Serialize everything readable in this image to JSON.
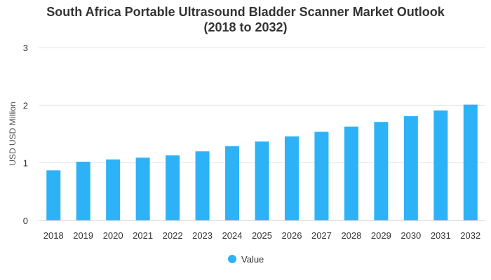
{
  "chart_data": {
    "type": "bar",
    "title_line1": "South Africa Portable Ultrasound Bladder Scanner Market Outlook",
    "title_line2": "(2018 to 2032)",
    "xlabel": "",
    "ylabel": "USD USD Million",
    "ylim": [
      0,
      3
    ],
    "yticks": [
      0,
      1,
      2,
      3
    ],
    "categories": [
      "2018",
      "2019",
      "2020",
      "2021",
      "2022",
      "2023",
      "2024",
      "2025",
      "2026",
      "2027",
      "2028",
      "2029",
      "2030",
      "2031",
      "2032"
    ],
    "series": [
      {
        "name": "Value",
        "color": "#2db2f7",
        "values": [
          0.87,
          1.02,
          1.06,
          1.09,
          1.13,
          1.2,
          1.29,
          1.37,
          1.46,
          1.54,
          1.63,
          1.71,
          1.81,
          1.91,
          2.01
        ]
      }
    ],
    "grid": true,
    "legend": "bottom-center",
    "colors": {
      "grid": "#e6e6e6",
      "axis": "#cccccc",
      "bar": "#2db2f7"
    }
  }
}
